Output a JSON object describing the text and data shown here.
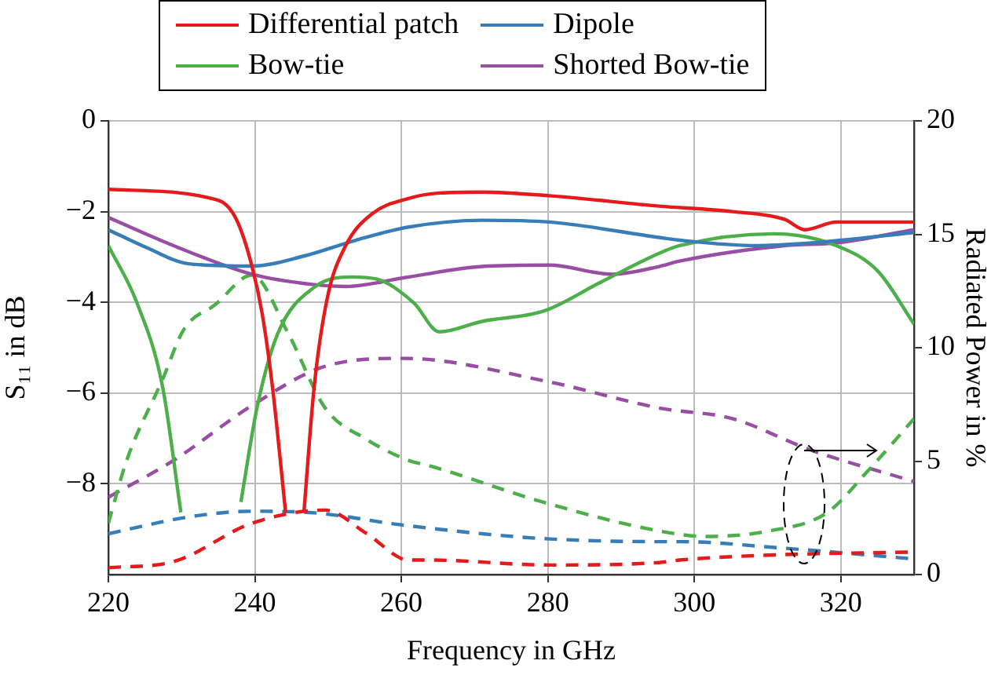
{
  "chart_data": {
    "type": "line",
    "xlabel": "Frequency in GHz",
    "ylabel": "S₁₁ in dB",
    "y2label": "Radiated Power in %",
    "xlim": [
      220,
      330
    ],
    "xticks": [
      220,
      240,
      260,
      280,
      300,
      320
    ],
    "ylim": [
      -10,
      0
    ],
    "yticks": [
      -8,
      -6,
      -4,
      -2,
      0
    ],
    "y2lim": [
      0,
      20
    ],
    "y2ticks": [
      0,
      5,
      10,
      15,
      20
    ],
    "grid": true,
    "legend": "top",
    "marker": "none",
    "series": [
      {
        "name": "Differential patch",
        "color": "#e41a1c",
        "line_style": "solid",
        "x": [
          220,
          235,
          237.5,
          239.6,
          241,
          242.4,
          244.2,
          245.5,
          246.7,
          248.1,
          249.9,
          252.4,
          256,
          261,
          265.2,
          271,
          280.2,
          295.2,
          305.2,
          312.3,
          315.1,
          319.4,
          330
        ],
        "values": [
          -1.51,
          -1.75,
          -2.18,
          -3.2,
          -4.25,
          -5.86,
          -8.63,
          null,
          -8.63,
          -5.86,
          -3.9,
          -2.75,
          -2.05,
          -1.71,
          -1.59,
          -1.57,
          -1.65,
          -1.88,
          -2.0,
          -2.17,
          -2.4,
          -2.23,
          -2.23
        ]
      },
      {
        "name": "Dipole",
        "color": "#377eb8",
        "line_style": "solid",
        "x": [
          220,
          225.3,
          231,
          239.6,
          246.7,
          253.8,
          261,
          271,
          280.2,
          295.2,
          298,
          308.7,
          315.9,
          330
        ],
        "values": [
          -2.4,
          -2.8,
          -3.15,
          -3.2,
          -2.98,
          -2.63,
          -2.34,
          -2.19,
          -2.23,
          -2.57,
          -2.63,
          -2.75,
          -2.69,
          -2.46
        ]
      },
      {
        "name": "Bow-tie",
        "color": "#4daf4a",
        "line_style": "solid",
        "x": [
          220,
          223.9,
          227.4,
          229.9,
          231.2,
          234,
          236.9,
          238.1,
          240.3,
          243.1,
          248.1,
          253.1,
          256.7,
          261.7,
          265.2,
          271,
          279.5,
          287.3,
          295.2,
          298,
          310.9,
          319.4,
          325.1,
          330
        ],
        "values": [
          -2.75,
          -4.01,
          -5.86,
          -8.63,
          null,
          null,
          null,
          -8.4,
          -6.32,
          -4.7,
          -3.67,
          -3.44,
          -3.49,
          -4.01,
          -4.65,
          -4.42,
          -4.19,
          -3.55,
          -2.92,
          -2.75,
          -2.49,
          -2.75,
          -3.32,
          -4.48
        ]
      },
      {
        "name": "Shorted Bow-tie",
        "color": "#984ea3",
        "line_style": "solid",
        "x": [
          220,
          228.9,
          239.6,
          248.1,
          252.4,
          261,
          271,
          280.2,
          288.8,
          295.2,
          298,
          312.3,
          319.4,
          330
        ],
        "values": [
          -2.13,
          -2.75,
          -3.38,
          -3.61,
          -3.65,
          -3.44,
          -3.21,
          -3.18,
          -3.38,
          -3.21,
          -3.09,
          -2.75,
          -2.69,
          -2.4
        ]
      },
      {
        "color": "#e41a1c",
        "line_style": "dashed",
        "axis": "y2",
        "x": [
          220,
          228.9,
          239.6,
          249.6,
          255.3,
          261,
          263.8,
          280.2,
          295.2,
          298,
          312.3,
          330
        ],
        "values": [
          0.3,
          0.57,
          2.26,
          2.84,
          1.8,
          0.64,
          0.64,
          0.42,
          0.53,
          0.64,
          0.88,
          0.99
        ]
      },
      {
        "color": "#377eb8",
        "line_style": "dashed",
        "axis": "y2",
        "x": [
          220,
          231,
          239.6,
          248.1,
          259.5,
          271,
          280.2,
          295.2,
          298,
          312.3,
          330
        ],
        "values": [
          1.8,
          2.54,
          2.79,
          2.72,
          2.21,
          1.8,
          1.57,
          1.45,
          1.45,
          1.16,
          0.69
        ]
      },
      {
        "color": "#4daf4a",
        "line_style": "dashed",
        "axis": "y2",
        "x": [
          220,
          222.5,
          227.4,
          230.3,
          234.6,
          239.6,
          244.6,
          249.6,
          255.3,
          261,
          263.8,
          279.5,
          295.2,
          301.6,
          310.2,
          318.1,
          323.7,
          330
        ],
        "values": [
          2.26,
          5.03,
          8.6,
          10.8,
          11.9,
          13.2,
          10.6,
          7.34,
          5.95,
          5.03,
          4.8,
          3.18,
          1.92,
          1.68,
          1.92,
          2.72,
          4.57,
          6.87
        ]
      },
      {
        "color": "#984ea3",
        "line_style": "dashed",
        "axis": "y2",
        "x": [
          220,
          228.9,
          239.6,
          249.6,
          260.3,
          280.2,
          295.2,
          305.2,
          315.9,
          330
        ],
        "values": [
          3.41,
          5.03,
          7.45,
          9.18,
          9.53,
          8.49,
          7.34,
          6.87,
          5.49,
          4.1
        ]
      }
    ]
  }
}
